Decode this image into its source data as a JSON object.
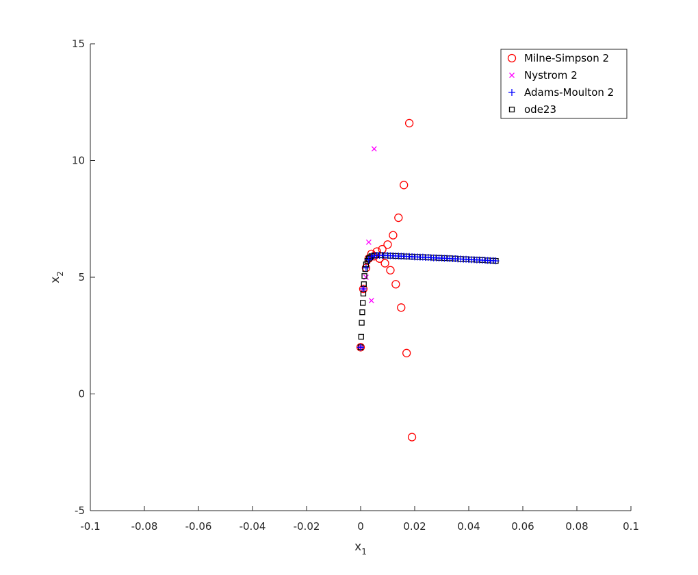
{
  "chart_data": {
    "type": "scatter",
    "title": "",
    "xlabel": "x",
    "xlabel_sub": "1",
    "ylabel": "x",
    "ylabel_sub": "2",
    "xlim": [
      -0.1,
      0.1
    ],
    "ylim": [
      -5,
      15
    ],
    "xticks": [
      -0.1,
      -0.08,
      -0.06,
      -0.04,
      -0.02,
      0,
      0.02,
      0.04,
      0.06,
      0.08,
      0.1
    ],
    "xtick_labels": [
      "-0.1",
      "-0.08",
      "-0.06",
      "-0.04",
      "-0.02",
      "0",
      "0.02",
      "0.04",
      "0.06",
      "0.08",
      "0.1"
    ],
    "yticks": [
      -5,
      0,
      5,
      10,
      15
    ],
    "ytick_labels": [
      "-5",
      "0",
      "5",
      "10",
      "15"
    ],
    "grid": false,
    "legend_position": "top-right",
    "series": [
      {
        "name": "Milne-Simpson 2",
        "marker": "circle",
        "color": "#ff0000",
        "points": [
          [
            0.0,
            2.0
          ],
          [
            0.001,
            4.5
          ],
          [
            0.002,
            5.4
          ],
          [
            0.003,
            5.8
          ],
          [
            0.004,
            6.0
          ],
          [
            0.005,
            5.9
          ],
          [
            0.006,
            6.1
          ],
          [
            0.007,
            5.8
          ],
          [
            0.008,
            6.2
          ],
          [
            0.009,
            5.6
          ],
          [
            0.01,
            6.4
          ],
          [
            0.011,
            5.3
          ],
          [
            0.012,
            6.8
          ],
          [
            0.013,
            4.7
          ],
          [
            0.014,
            7.55
          ],
          [
            0.015,
            3.7
          ],
          [
            0.016,
            8.95
          ],
          [
            0.017,
            1.75
          ],
          [
            0.018,
            11.6
          ],
          [
            0.019,
            -1.85
          ]
        ]
      },
      {
        "name": "Nystrom 2",
        "marker": "x",
        "color": "#ff00ff",
        "points": [
          [
            0.0,
            2.0
          ],
          [
            0.001,
            4.5
          ],
          [
            0.002,
            5.0
          ],
          [
            0.003,
            6.5
          ],
          [
            0.004,
            4.0
          ],
          [
            0.005,
            10.5
          ]
        ]
      },
      {
        "name": "Adams-Moulton 2",
        "marker": "plus",
        "color": "#0000ff",
        "points": [
          [
            0.0,
            2.0
          ],
          [
            0.001,
            4.5
          ],
          [
            0.002,
            5.4
          ],
          [
            0.003,
            5.75
          ],
          [
            0.004,
            5.88
          ],
          [
            0.005,
            5.92
          ],
          [
            0.006,
            5.94
          ],
          [
            0.007,
            5.94
          ],
          [
            0.008,
            5.94
          ],
          [
            0.009,
            5.93
          ],
          [
            0.01,
            5.93
          ],
          [
            0.011,
            5.92
          ],
          [
            0.012,
            5.92
          ],
          [
            0.013,
            5.91
          ],
          [
            0.014,
            5.91
          ],
          [
            0.015,
            5.9
          ],
          [
            0.016,
            5.9
          ],
          [
            0.017,
            5.89
          ],
          [
            0.018,
            5.89
          ],
          [
            0.019,
            5.88
          ],
          [
            0.02,
            5.87
          ],
          [
            0.021,
            5.87
          ],
          [
            0.022,
            5.86
          ],
          [
            0.023,
            5.86
          ],
          [
            0.024,
            5.85
          ],
          [
            0.025,
            5.85
          ],
          [
            0.026,
            5.84
          ],
          [
            0.027,
            5.83
          ],
          [
            0.028,
            5.83
          ],
          [
            0.029,
            5.82
          ],
          [
            0.03,
            5.82
          ],
          [
            0.031,
            5.81
          ],
          [
            0.032,
            5.81
          ],
          [
            0.033,
            5.8
          ],
          [
            0.034,
            5.79
          ],
          [
            0.035,
            5.79
          ],
          [
            0.036,
            5.78
          ],
          [
            0.037,
            5.78
          ],
          [
            0.038,
            5.77
          ],
          [
            0.039,
            5.77
          ],
          [
            0.04,
            5.76
          ],
          [
            0.041,
            5.75
          ],
          [
            0.042,
            5.75
          ],
          [
            0.043,
            5.74
          ],
          [
            0.044,
            5.74
          ],
          [
            0.045,
            5.73
          ],
          [
            0.046,
            5.73
          ],
          [
            0.047,
            5.72
          ],
          [
            0.048,
            5.71
          ],
          [
            0.049,
            5.71
          ],
          [
            0.05,
            5.7
          ]
        ]
      },
      {
        "name": "ode23",
        "marker": "square",
        "color": "#000000",
        "points": [
          [
            0.0,
            2.0
          ],
          [
            0.0002,
            2.45
          ],
          [
            0.0004,
            3.05
          ],
          [
            0.0006,
            3.5
          ],
          [
            0.0008,
            3.9
          ],
          [
            0.001,
            4.3
          ],
          [
            0.0012,
            4.7
          ],
          [
            0.0014,
            5.05
          ],
          [
            0.0017,
            5.35
          ],
          [
            0.002,
            5.55
          ],
          [
            0.0025,
            5.7
          ],
          [
            0.003,
            5.8
          ],
          [
            0.0035,
            5.85
          ],
          [
            0.004,
            5.9
          ],
          [
            0.005,
            5.93
          ],
          [
            0.006,
            5.94
          ],
          [
            0.0075,
            5.94
          ],
          [
            0.009,
            5.93
          ],
          [
            0.011,
            5.92
          ],
          [
            0.013,
            5.91
          ],
          [
            0.015,
            5.9
          ],
          [
            0.017,
            5.89
          ],
          [
            0.019,
            5.88
          ],
          [
            0.021,
            5.87
          ],
          [
            0.023,
            5.86
          ],
          [
            0.025,
            5.85
          ],
          [
            0.027,
            5.84
          ],
          [
            0.029,
            5.83
          ],
          [
            0.031,
            5.82
          ],
          [
            0.033,
            5.81
          ],
          [
            0.035,
            5.8
          ],
          [
            0.037,
            5.78
          ],
          [
            0.039,
            5.77
          ],
          [
            0.041,
            5.76
          ],
          [
            0.043,
            5.75
          ],
          [
            0.045,
            5.74
          ],
          [
            0.047,
            5.72
          ],
          [
            0.049,
            5.71
          ],
          [
            0.05,
            5.7
          ]
        ]
      }
    ]
  }
}
